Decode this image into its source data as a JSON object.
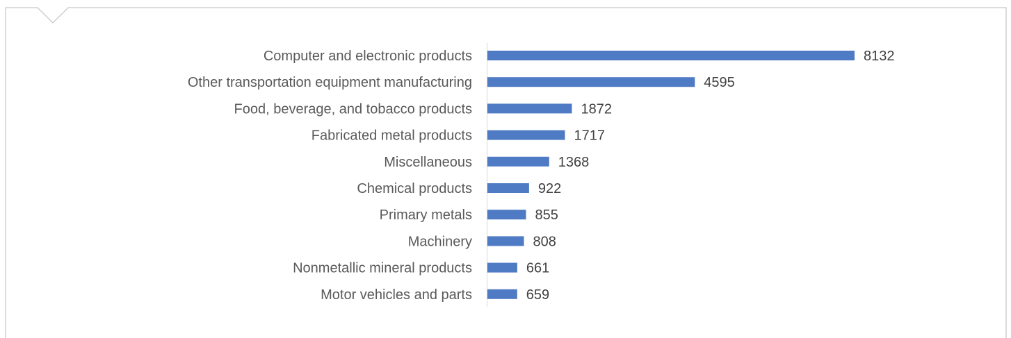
{
  "colors": {
    "bar": "#4f7bc4",
    "axis": "#d9d9d9",
    "frame": "#c8c8c8",
    "category_text": "#595959",
    "value_text": "#404040"
  },
  "chart_data": {
    "type": "bar",
    "orientation": "horizontal",
    "title": "",
    "xlabel": "",
    "ylabel": "",
    "xlim": [
      0,
      8132
    ],
    "grid": false,
    "legend": "none",
    "data_labels": true,
    "categories": [
      "Computer and electronic products",
      "Other transportation equipment manufacturing",
      "Food, beverage, and tobacco products",
      "Fabricated metal products",
      "Miscellaneous",
      "Chemical products",
      "Primary metals",
      "Machinery",
      "Nonmetallic mineral products",
      "Motor vehicles and parts"
    ],
    "values": [
      8132,
      4595,
      1872,
      1717,
      1368,
      922,
      855,
      808,
      661,
      659
    ]
  }
}
